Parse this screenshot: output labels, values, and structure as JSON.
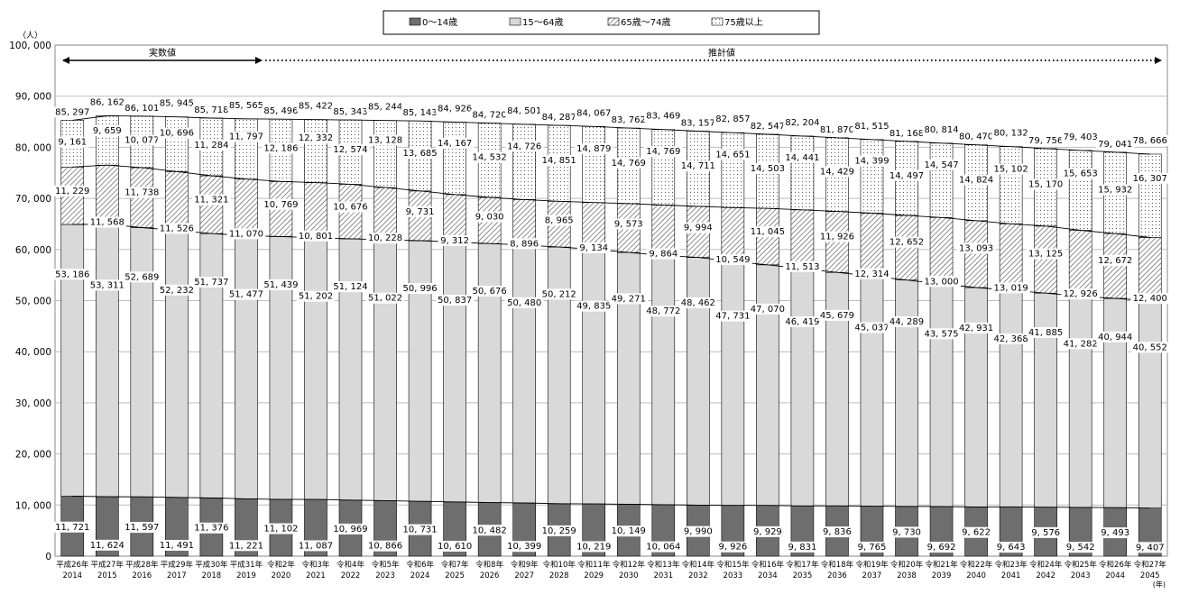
{
  "chart_data": {
    "type": "bar",
    "stacked": true,
    "y_unit_label": "（人）",
    "x_unit_label": "(年)",
    "ylim": [
      0,
      100000
    ],
    "yticks": [
      "0",
      "10, 000",
      "20, 000",
      "30, 000",
      "40, 000",
      "50, 000",
      "60, 000",
      "70, 000",
      "80, 000",
      "90, 000",
      "100, 000"
    ],
    "ytick_values": [
      0,
      10000,
      20000,
      30000,
      40000,
      50000,
      60000,
      70000,
      80000,
      90000,
      100000
    ],
    "grid": true,
    "legend_position": "top-center",
    "categories_era": [
      "平成26年",
      "平成27年",
      "平成28年",
      "平成29年",
      "平成30年",
      "平成31年",
      "令和2年",
      "令和3年",
      "令和4年",
      "令和5年",
      "令和6年",
      "令和7年",
      "令和8年",
      "令和9年",
      "令和10年",
      "令和11年",
      "令和12年",
      "令和13年",
      "令和14年",
      "令和15年",
      "令和16年",
      "令和17年",
      "令和18年",
      "令和19年",
      "令和20年",
      "令和21年",
      "令和22年",
      "令和23年",
      "令和24年",
      "令和25年",
      "令和26年",
      "令和27年"
    ],
    "categories_year": [
      "2014",
      "2015",
      "2016",
      "2017",
      "2018",
      "2019",
      "2020",
      "2021",
      "2022",
      "2023",
      "2024",
      "2025",
      "2026",
      "2027",
      "2028",
      "2029",
      "2030",
      "2031",
      "2032",
      "2033",
      "2034",
      "2035",
      "2036",
      "2037",
      "2038",
      "2039",
      "2040",
      "2041",
      "2042",
      "2043",
      "2044",
      "2045"
    ],
    "series": [
      {
        "name": "0～14歳",
        "pattern": "solid-dark",
        "color": "#6e6e6e",
        "values": [
          11721,
          11624,
          11597,
          11491,
          11376,
          11221,
          11102,
          11087,
          10969,
          10866,
          10731,
          10610,
          10482,
          10399,
          10259,
          10219,
          10149,
          10064,
          9990,
          9926,
          9929,
          9831,
          9836,
          9765,
          9730,
          9692,
          9622,
          9643,
          9576,
          9542,
          9493,
          9407
        ],
        "labels": [
          "11, 721",
          "11, 624",
          "11, 597",
          "11, 491",
          "11, 376",
          "11, 221",
          "11, 102",
          "11, 087",
          "10, 969",
          "10, 866",
          "10, 731",
          "10, 610",
          "10, 482",
          "10, 399",
          "10, 259",
          "10, 219",
          "10, 149",
          "10, 064",
          "9, 990",
          "9, 926",
          "9, 929",
          "9, 831",
          "9, 836",
          "9, 765",
          "9, 730",
          "9, 692",
          "9, 622",
          "9, 643",
          "9, 576",
          "9, 542",
          "9, 493",
          "9, 407"
        ]
      },
      {
        "name": "15～64歳",
        "pattern": "solid-light",
        "color": "#d9d9d9",
        "values": [
          53186,
          53311,
          52689,
          52232,
          51737,
          51477,
          51439,
          51202,
          51124,
          51022,
          50996,
          50837,
          50676,
          50480,
          50212,
          49835,
          49271,
          48772,
          48462,
          47731,
          47070,
          46419,
          45679,
          45037,
          44289,
          43575,
          42931,
          42368,
          41885,
          41282,
          40944,
          40552
        ],
        "labels": [
          "53, 186",
          "53, 311",
          "52, 689",
          "52, 232",
          "51, 737",
          "51, 477",
          "51, 439",
          "51, 202",
          "51, 124",
          "51, 022",
          "50, 996",
          "50, 837",
          "50, 676",
          "50, 480",
          "50, 212",
          "49, 835",
          "49, 271",
          "48, 772",
          "48, 462",
          "47, 731",
          "47, 070",
          "46, 419",
          "45, 679",
          "45, 037",
          "44, 289",
          "43, 575",
          "42, 931",
          "42, 368",
          "41, 885",
          "41, 282",
          "40, 944",
          "40, 552"
        ]
      },
      {
        "name": "65歳～74歳",
        "pattern": "hatch",
        "color": "#555555",
        "values": [
          11229,
          11568,
          11738,
          11526,
          11321,
          11070,
          10769,
          10801,
          10676,
          10228,
          9731,
          9312,
          9030,
          8896,
          8965,
          9134,
          9573,
          9864,
          9994,
          10549,
          11045,
          11513,
          11926,
          12314,
          12652,
          13000,
          13093,
          13019,
          13125,
          12926,
          12672,
          12400
        ],
        "labels": [
          "11, 229",
          "11, 568",
          "11, 738",
          "11, 526",
          "11, 321",
          "11, 070",
          "10, 769",
          "10, 801",
          "10, 676",
          "10, 228",
          "9, 731",
          "9, 312",
          "9, 030",
          "8, 896",
          "8, 965",
          "9, 134",
          "9, 573",
          "9, 864",
          "9, 994",
          "10, 549",
          "11, 045",
          "11, 513",
          "11, 926",
          "12, 314",
          "12, 652",
          "13, 000",
          "13, 093",
          "13, 019",
          "13, 125",
          "12, 926",
          "12, 672",
          "12, 400"
        ]
      },
      {
        "name": "75歳以上",
        "pattern": "dots",
        "color": "#444444",
        "values": [
          9161,
          9659,
          10077,
          10696,
          11284,
          11797,
          12186,
          12332,
          12574,
          13128,
          13685,
          14167,
          14532,
          14726,
          14851,
          14879,
          14769,
          14769,
          14711,
          14651,
          14503,
          14441,
          14429,
          14399,
          14497,
          14547,
          14824,
          15102,
          15170,
          15653,
          15932,
          16307
        ],
        "labels": [
          "9, 161",
          "9, 659",
          "10, 077",
          "10, 696",
          "11, 284",
          "11, 797",
          "12, 186",
          "12, 332",
          "12, 574",
          "13, 128",
          "13, 685",
          "14, 167",
          "14, 532",
          "14, 726",
          "14, 851",
          "14, 879",
          "14, 769",
          "14, 769",
          "14, 711",
          "14, 651",
          "14, 503",
          "14, 441",
          "14, 429",
          "14, 399",
          "14, 497",
          "14, 547",
          "14, 824",
          "15, 102",
          "15, 170",
          "15, 653",
          "15, 932",
          "16, 307"
        ]
      }
    ],
    "totals": [
      85297,
      86162,
      86101,
      85945,
      85718,
      85565,
      85496,
      85422,
      85343,
      85244,
      85143,
      84926,
      84720,
      84501,
      84287,
      84067,
      83762,
      83469,
      83157,
      82857,
      82547,
      82204,
      81870,
      81515,
      81168,
      80814,
      80470,
      80132,
      79756,
      79403,
      79041,
      78666
    ],
    "total_labels": [
      "85, 297",
      "86, 162",
      "86, 101",
      "85, 945",
      "85, 718",
      "85, 565",
      "85, 496",
      "85, 422",
      "85, 343",
      "85, 244",
      "85, 143",
      "84, 926",
      "84, 720",
      "84, 501",
      "84, 287",
      "84, 067",
      "83, 762",
      "83, 469",
      "83, 157",
      "82, 857",
      "82, 547",
      "82, 204",
      "81, 870",
      "81, 515",
      "81, 168",
      "80, 814",
      "80, 470",
      "80, 132",
      "79, 756",
      "79, 403",
      "79, 041",
      "78, 666"
    ],
    "annotations": {
      "actual_label": "実数値",
      "actual_range": [
        "2014",
        "2019"
      ],
      "projected_label": "推計値",
      "projected_range": [
        "2020",
        "2045"
      ]
    }
  }
}
